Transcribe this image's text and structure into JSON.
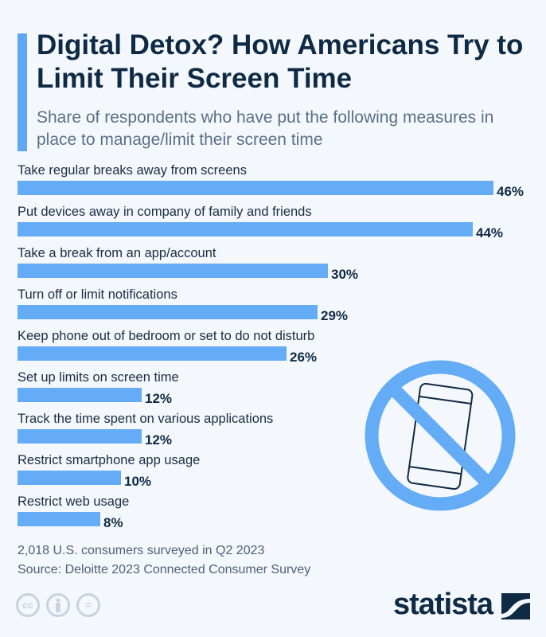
{
  "title": "Digital Detox? How Americans Try to Limit Their Screen Time",
  "subtitle": "Share of respondents who have put the following measures in place to manage/limit their screen time",
  "chart_data": {
    "type": "bar",
    "orientation": "horizontal",
    "categories": [
      "Take regular breaks away from screens",
      "Put devices away in company of family and friends",
      "Take a break from an app/account",
      "Turn off or limit notifications",
      "Keep phone out of bedroom or set to do not disturb",
      "Set up limits on screen time",
      "Track the time spent on various applications",
      "Restrict smartphone app usage",
      "Restrict web usage"
    ],
    "values": [
      46,
      44,
      30,
      29,
      26,
      12,
      12,
      10,
      8
    ],
    "value_labels": [
      "46%",
      "44%",
      "30%",
      "29%",
      "26%",
      "12%",
      "12%",
      "10%",
      "8%"
    ],
    "unit": "%",
    "grid": false,
    "bar_color": "#64acf5"
  },
  "footer": {
    "note": "2,018 U.S. consumers surveyed in Q2 2023",
    "source": "Source: Deloitte 2023 Connected Consumer Survey",
    "cc_icons": [
      "cc",
      "by",
      "nd"
    ],
    "cc_labels": [
      "cc",
      "=",
      ""
    ]
  },
  "brand": {
    "logo": "statista"
  },
  "icon": "no-phone-icon",
  "colors": {
    "accent": "#5ea8f3",
    "bar": "#64acf5",
    "title": "#0f2a44"
  }
}
